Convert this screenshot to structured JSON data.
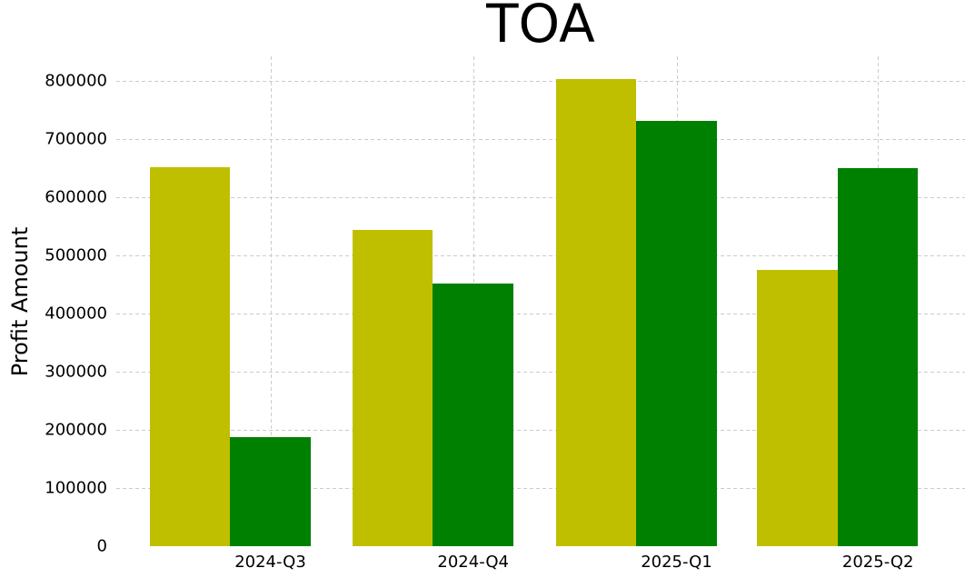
{
  "chart_data": {
    "type": "bar",
    "title": "TOA",
    "xlabel": "",
    "ylabel": "Profit Amount",
    "categories": [
      "2024-Q3",
      "2024-Q4",
      "2025-Q1",
      "2025-Q2"
    ],
    "series": [
      {
        "color": "#bfbf00",
        "values": [
          652000,
          545000,
          804000,
          476000
        ]
      },
      {
        "color": "#008000",
        "values": [
          187000,
          452000,
          732000,
          651000
        ]
      }
    ],
    "y_ticks": [
      0,
      100000,
      200000,
      300000,
      400000,
      500000,
      600000,
      700000,
      800000
    ],
    "ylim": [
      0,
      843000
    ],
    "legend_position": "none",
    "grid": "dashed",
    "grid_color": "#cccccc",
    "background_color": "#ffffff",
    "text_color": "#000000"
  }
}
